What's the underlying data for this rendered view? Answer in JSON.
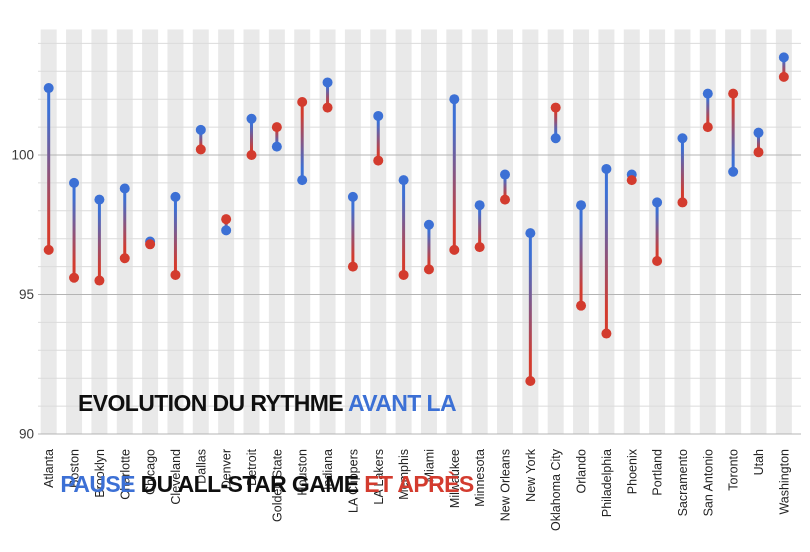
{
  "title": {
    "line1_black": "EVOLUTION DU RYTHME ",
    "line1_blue": "AVANT LA",
    "line2_blue": "PAUSE",
    "line2_black": " DU ALL-STAR GAME ",
    "line2_red": "ET APRÈS"
  },
  "colors": {
    "before_blue": "#3c70d5",
    "after_red": "#d33b2e",
    "title_black": "#0f0f0f",
    "stripe": "#e9e9e9",
    "grid_minor": "#dbdbdb",
    "grid_major": "#b4b4b4",
    "axis_text": "#3a3a3a",
    "category_text": "#222222",
    "background": "#ffffff"
  },
  "chart_data": {
    "type": "scatter",
    "subtype": "dumbbell-vertical",
    "title": "EVOLUTION DU RYTHME AVANT LA PAUSE DU ALL-STAR GAME ET APRÈS",
    "xlabel": "",
    "ylabel": "",
    "ylim": [
      89.5,
      104.5
    ],
    "yticks": [
      90,
      95,
      100
    ],
    "grid": true,
    "legend_position": "in-title",
    "legend": [
      {
        "name": "Avant la pause",
        "color": "#3c70d5"
      },
      {
        "name": "Et après",
        "color": "#d33b2e"
      }
    ],
    "categories": [
      "Atlanta",
      "Boston",
      "Brooklyn",
      "Charlotte",
      "Chicago",
      "Cleveland",
      "Dallas",
      "Denver",
      "Detroit",
      "Golden State",
      "Houston",
      "Indiana",
      "LA Clippers",
      "LA Lakers",
      "Memphis",
      "Miami",
      "Milwaukee",
      "Minnesota",
      "New Orleans",
      "New York",
      "Oklahoma City",
      "Orlando",
      "Philadelphia",
      "Phoenix",
      "Portland",
      "Sacramento",
      "San Antonio",
      "Toronto",
      "Utah",
      "Washington"
    ],
    "series": [
      {
        "name": "Avant la pause",
        "color": "#3c70d5",
        "values": [
          102.4,
          99.0,
          98.4,
          98.8,
          96.9,
          98.5,
          100.9,
          97.3,
          101.3,
          100.3,
          99.1,
          102.6,
          98.5,
          101.4,
          99.1,
          97.5,
          102.0,
          98.2,
          99.3,
          97.2,
          100.6,
          98.2,
          99.5,
          99.3,
          98.3,
          100.6,
          102.2,
          99.4,
          100.8,
          103.5
        ]
      },
      {
        "name": "Et après",
        "color": "#d33b2e",
        "values": [
          96.6,
          95.6,
          95.5,
          96.3,
          96.8,
          95.7,
          100.2,
          97.7,
          100.0,
          101.0,
          101.9,
          101.7,
          96.0,
          99.8,
          95.7,
          95.9,
          96.6,
          96.7,
          98.4,
          91.9,
          101.7,
          94.6,
          93.6,
          99.1,
          96.2,
          98.3,
          101.0,
          102.2,
          100.1,
          102.8
        ]
      }
    ]
  }
}
